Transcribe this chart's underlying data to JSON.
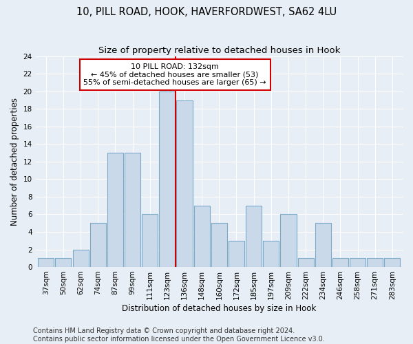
{
  "title1": "10, PILL ROAD, HOOK, HAVERFORDWEST, SA62 4LU",
  "title2": "Size of property relative to detached houses in Hook",
  "xlabel": "Distribution of detached houses by size in Hook",
  "ylabel": "Number of detached properties",
  "categories": [
    "37sqm",
    "50sqm",
    "62sqm",
    "74sqm",
    "87sqm",
    "99sqm",
    "111sqm",
    "123sqm",
    "136sqm",
    "148sqm",
    "160sqm",
    "172sqm",
    "185sqm",
    "197sqm",
    "209sqm",
    "222sqm",
    "234sqm",
    "246sqm",
    "258sqm",
    "271sqm",
    "283sqm"
  ],
  "values": [
    1,
    1,
    2,
    5,
    13,
    13,
    6,
    20,
    19,
    7,
    5,
    3,
    7,
    3,
    6,
    1,
    5,
    1,
    1,
    1,
    1
  ],
  "bar_color": "#c9d9ea",
  "bar_edge_color": "#7aaac8",
  "vline_color": "#cc0000",
  "annotation_line1": "10 PILL ROAD: 132sqm",
  "annotation_line2": "← 45% of detached houses are smaller (53)",
  "annotation_line3": "55% of semi-detached houses are larger (65) →",
  "annotation_box_edge": "#cc0000",
  "ylim": [
    0,
    24
  ],
  "yticks": [
    0,
    2,
    4,
    6,
    8,
    10,
    12,
    14,
    16,
    18,
    20,
    22,
    24
  ],
  "footer1": "Contains HM Land Registry data © Crown copyright and database right 2024.",
  "footer2": "Contains public sector information licensed under the Open Government Licence v3.0.",
  "bg_color": "#e8eef5",
  "grid_color": "#ffffff",
  "title_fontsize": 10.5,
  "subtitle_fontsize": 9.5,
  "axis_label_fontsize": 8.5,
  "tick_fontsize": 7.5,
  "footer_fontsize": 7,
  "ann_fontsize": 8
}
